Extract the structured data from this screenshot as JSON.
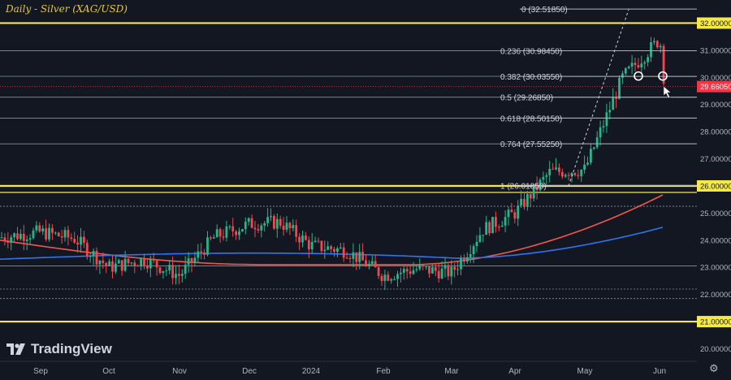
{
  "chart_data": {
    "type": "candlestick",
    "title": "Daily - Silver (XAG/USD)",
    "brand": "TradingView",
    "current_price": "29.66050",
    "x_ticks": [
      "Sep",
      "Oct",
      "Nov",
      "Dec",
      "2024",
      "Feb",
      "Mar",
      "Apr",
      "May",
      "Jun"
    ],
    "y_ticks": [
      "20.00000",
      "21.00000",
      "22.00000",
      "23.00000",
      "24.00000",
      "25.00000",
      "26.00000",
      "27.00000",
      "28.00000",
      "29.00000",
      "29.66050",
      "30.00000",
      "31.00000",
      "32.00000"
    ],
    "ylim": [
      19.6,
      32.9
    ],
    "key_levels": [
      32.0,
      26.0,
      25.76,
      21.0
    ],
    "support_resistance_lines": [
      30.04,
      30.98,
      29.27,
      28.5,
      27.55,
      26.02,
      25.25,
      23.05,
      22.2,
      21.85
    ],
    "fibonacci": [
      {
        "label": "0 (32.51850)",
        "value": 32.5185
      },
      {
        "label": "0.236 (30.98450)",
        "value": 30.9845
      },
      {
        "label": "0.382 (30.03550)",
        "value": 30.0355
      },
      {
        "label": "0.5 (29.26850)",
        "value": 29.2685
      },
      {
        "label": "0.618 (28.50150)",
        "value": 28.5015
      },
      {
        "label": "0.764 (27.55250)",
        "value": 27.5525
      },
      {
        "label": "1 (26.01850)",
        "value": 26.0185
      }
    ],
    "months": [
      {
        "label": "Sep",
        "open": 24.3,
        "close": 23.0,
        "high": 25.0,
        "low": 22.3
      },
      {
        "label": "Oct",
        "open": 23.0,
        "close": 22.7,
        "high": 23.6,
        "low": 20.7
      },
      {
        "label": "Nov",
        "open": 22.7,
        "close": 24.6,
        "high": 25.3,
        "low": 22.2
      },
      {
        "label": "Dec",
        "open": 24.6,
        "close": 23.8,
        "high": 25.9,
        "low": 22.8
      },
      {
        "label": "2024",
        "open": 23.8,
        "close": 22.7,
        "high": 24.4,
        "low": 22.0
      },
      {
        "label": "Feb",
        "open": 22.7,
        "close": 22.8,
        "high": 23.3,
        "low": 22.0
      },
      {
        "label": "Mar",
        "open": 22.8,
        "close": 25.0,
        "high": 25.7,
        "low": 22.3
      },
      {
        "label": "Apr",
        "open": 25.0,
        "close": 26.6,
        "high": 29.7,
        "low": 25.0
      },
      {
        "label": "May",
        "open": 26.6,
        "close": 31.4,
        "high": 32.5,
        "low": 26.0
      },
      {
        "label": "Jun",
        "open": 31.4,
        "close": 29.66,
        "high": 32.2,
        "low": 29.5
      }
    ],
    "ma_series": [
      {
        "color": "#f2574b",
        "start": 24.0,
        "end": 25.8
      },
      {
        "color": "#2f74f0",
        "start": 23.3,
        "end": 24.55
      }
    ],
    "markers": [
      30.05,
      30.05
    ]
  }
}
